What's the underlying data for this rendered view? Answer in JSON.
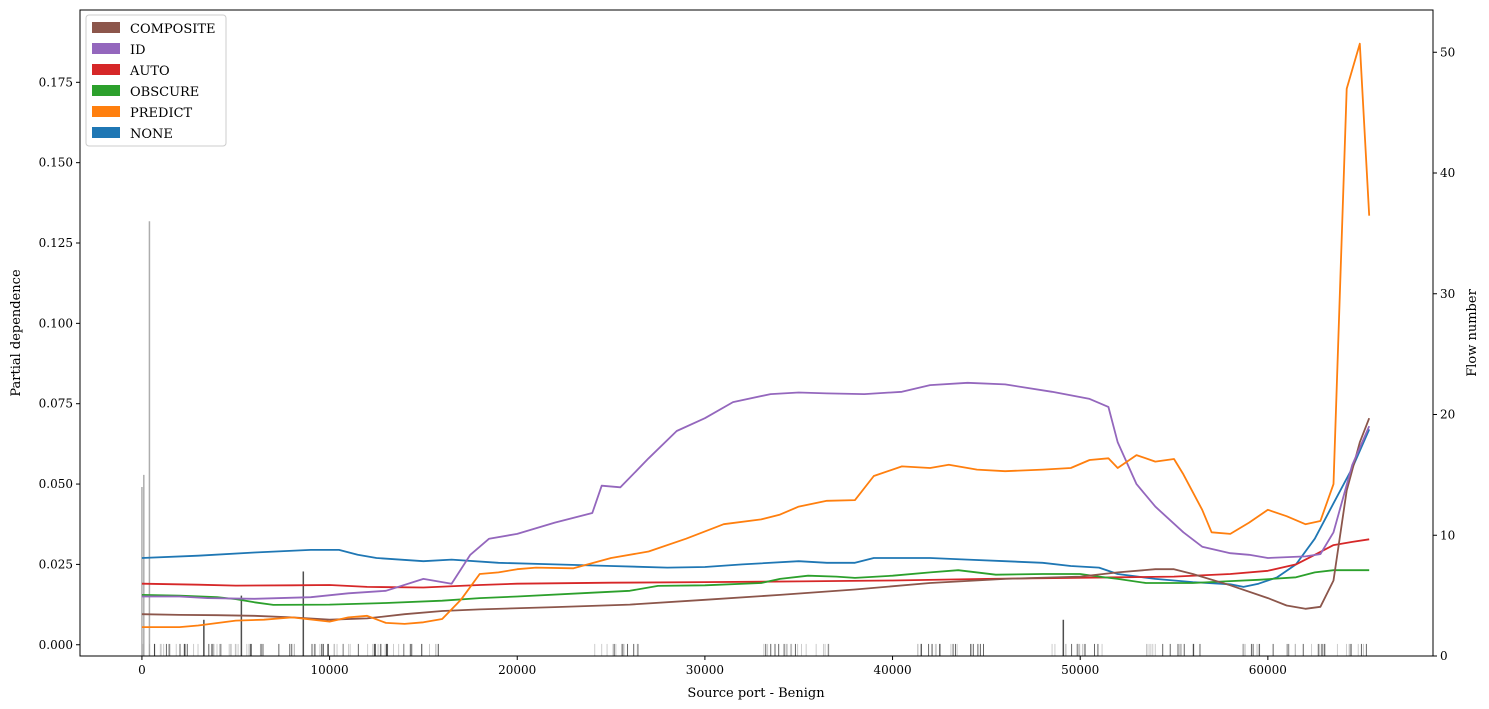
{
  "chart_data": {
    "type": "line",
    "xlabel": "Source port - Benign",
    "ylabel": "Partial dependence",
    "y2label": "Flow number",
    "xlim": [
      -3300,
      68800
    ],
    "ylim": [
      -0.0035,
      0.1975
    ],
    "y2lim": [
      0,
      53.5
    ],
    "xticks": [
      0,
      10000,
      20000,
      30000,
      40000,
      50000,
      60000
    ],
    "yticks": [
      0.0,
      0.025,
      0.05,
      0.075,
      0.1,
      0.125,
      0.15,
      0.175
    ],
    "y2ticks": [
      0,
      10,
      20,
      30,
      40,
      50
    ],
    "xtick_labels": [
      "0",
      "10000",
      "20000",
      "30000",
      "40000",
      "50000",
      "60000"
    ],
    "ytick_labels": [
      "0.000",
      "0.025",
      "0.050",
      "0.075",
      "0.100",
      "0.125",
      "0.150",
      "0.175"
    ],
    "y2tick_labels": [
      "0",
      "10",
      "20",
      "30",
      "40",
      "50"
    ],
    "legend_position": "top-left",
    "grid": false,
    "legend": [
      {
        "name": "COMPOSITE",
        "color": "#8c564b"
      },
      {
        "name": "ID",
        "color": "#9467bd"
      },
      {
        "name": "AUTO",
        "color": "#d62728"
      },
      {
        "name": "OBSCURE",
        "color": "#2ca02c"
      },
      {
        "name": "PREDICT",
        "color": "#ff7f0e"
      },
      {
        "name": "NONE",
        "color": "#1f77b4"
      }
    ],
    "series": [
      {
        "name": "NONE",
        "color": "#1f77b4",
        "points": [
          [
            0,
            0.027
          ],
          [
            3000,
            0.0277
          ],
          [
            6000,
            0.0287
          ],
          [
            9000,
            0.0295
          ],
          [
            10500,
            0.0295
          ],
          [
            11500,
            0.028
          ],
          [
            12500,
            0.027
          ],
          [
            15000,
            0.026
          ],
          [
            16500,
            0.0265
          ],
          [
            19000,
            0.0255
          ],
          [
            22000,
            0.025
          ],
          [
            25000,
            0.0245
          ],
          [
            28000,
            0.024
          ],
          [
            30000,
            0.0242
          ],
          [
            32000,
            0.025
          ],
          [
            35000,
            0.026
          ],
          [
            36500,
            0.0255
          ],
          [
            38000,
            0.0255
          ],
          [
            39000,
            0.027
          ],
          [
            42000,
            0.027
          ],
          [
            44000,
            0.0265
          ],
          [
            46000,
            0.026
          ],
          [
            48000,
            0.0255
          ],
          [
            49500,
            0.0245
          ],
          [
            51000,
            0.024
          ],
          [
            52000,
            0.022
          ],
          [
            54000,
            0.0205
          ],
          [
            56000,
            0.0195
          ],
          [
            58000,
            0.0188
          ],
          [
            58700,
            0.018
          ],
          [
            59500,
            0.019
          ],
          [
            60500,
            0.021
          ],
          [
            61500,
            0.025
          ],
          [
            62500,
            0.033
          ],
          [
            63500,
            0.044
          ],
          [
            64500,
            0.055
          ],
          [
            65400,
            0.067
          ]
        ]
      },
      {
        "name": "AUTO",
        "color": "#d62728",
        "points": [
          [
            0,
            0.019
          ],
          [
            3000,
            0.0187
          ],
          [
            5000,
            0.0184
          ],
          [
            8000,
            0.0185
          ],
          [
            10000,
            0.0186
          ],
          [
            12000,
            0.018
          ],
          [
            15000,
            0.0178
          ],
          [
            18000,
            0.0186
          ],
          [
            20000,
            0.019
          ],
          [
            25000,
            0.0193
          ],
          [
            30000,
            0.0195
          ],
          [
            35000,
            0.0197
          ],
          [
            40000,
            0.02
          ],
          [
            45000,
            0.0205
          ],
          [
            48000,
            0.0207
          ],
          [
            52000,
            0.021
          ],
          [
            55000,
            0.0212
          ],
          [
            58000,
            0.022
          ],
          [
            60000,
            0.023
          ],
          [
            61500,
            0.025
          ],
          [
            62500,
            0.028
          ],
          [
            63500,
            0.031
          ],
          [
            64500,
            0.032
          ],
          [
            65400,
            0.0328
          ]
        ]
      },
      {
        "name": "OBSCURE",
        "color": "#2ca02c",
        "points": [
          [
            0,
            0.0155
          ],
          [
            2000,
            0.0153
          ],
          [
            4000,
            0.0148
          ],
          [
            5000,
            0.0142
          ],
          [
            6000,
            0.0132
          ],
          [
            7000,
            0.0124
          ],
          [
            10000,
            0.0125
          ],
          [
            13000,
            0.013
          ],
          [
            16000,
            0.0137
          ],
          [
            18000,
            0.0145
          ],
          [
            20000,
            0.015
          ],
          [
            24000,
            0.0162
          ],
          [
            26000,
            0.0168
          ],
          [
            27500,
            0.0183
          ],
          [
            30000,
            0.0185
          ],
          [
            33000,
            0.0192
          ],
          [
            34000,
            0.0205
          ],
          [
            35500,
            0.0215
          ],
          [
            37000,
            0.0212
          ],
          [
            38000,
            0.0208
          ],
          [
            40000,
            0.0215
          ],
          [
            42000,
            0.0225
          ],
          [
            43500,
            0.0232
          ],
          [
            45500,
            0.0218
          ],
          [
            48000,
            0.022
          ],
          [
            50000,
            0.022
          ],
          [
            51000,
            0.0212
          ],
          [
            52000,
            0.0205
          ],
          [
            53500,
            0.0192
          ],
          [
            56000,
            0.0192
          ],
          [
            58000,
            0.0198
          ],
          [
            59500,
            0.0202
          ],
          [
            61500,
            0.021
          ],
          [
            62500,
            0.0225
          ],
          [
            63500,
            0.0232
          ],
          [
            64500,
            0.0232
          ],
          [
            65400,
            0.0232
          ]
        ]
      },
      {
        "name": "COMPOSITE",
        "color": "#8c564b",
        "points": [
          [
            0,
            0.0095
          ],
          [
            2000,
            0.0093
          ],
          [
            4000,
            0.0092
          ],
          [
            6000,
            0.009
          ],
          [
            8000,
            0.0085
          ],
          [
            10000,
            0.0078
          ],
          [
            12000,
            0.0082
          ],
          [
            14000,
            0.0095
          ],
          [
            16000,
            0.0105
          ],
          [
            18000,
            0.011
          ],
          [
            22000,
            0.0117
          ],
          [
            26000,
            0.0125
          ],
          [
            30000,
            0.014
          ],
          [
            34000,
            0.0155
          ],
          [
            38000,
            0.0172
          ],
          [
            42000,
            0.0192
          ],
          [
            46000,
            0.0205
          ],
          [
            50000,
            0.0212
          ],
          [
            52000,
            0.0225
          ],
          [
            54000,
            0.0235
          ],
          [
            55000,
            0.0235
          ],
          [
            56000,
            0.022
          ],
          [
            58000,
            0.0185
          ],
          [
            60000,
            0.0145
          ],
          [
            61000,
            0.0122
          ],
          [
            62000,
            0.0112
          ],
          [
            62800,
            0.0118
          ],
          [
            63500,
            0.02
          ],
          [
            64200,
            0.048
          ],
          [
            64900,
            0.063
          ],
          [
            65400,
            0.0705
          ]
        ]
      },
      {
        "name": "ID",
        "color": "#9467bd",
        "points": [
          [
            0,
            0.015
          ],
          [
            2000,
            0.015
          ],
          [
            3500,
            0.0145
          ],
          [
            6000,
            0.0143
          ],
          [
            9000,
            0.0148
          ],
          [
            11000,
            0.016
          ],
          [
            13000,
            0.0168
          ],
          [
            15000,
            0.0205
          ],
          [
            16500,
            0.019
          ],
          [
            17500,
            0.028
          ],
          [
            18500,
            0.033
          ],
          [
            20000,
            0.0345
          ],
          [
            22000,
            0.038
          ],
          [
            24000,
            0.041
          ],
          [
            24500,
            0.0495
          ],
          [
            25500,
            0.049
          ],
          [
            27000,
            0.058
          ],
          [
            28500,
            0.0665
          ],
          [
            30000,
            0.0705
          ],
          [
            31500,
            0.0755
          ],
          [
            33500,
            0.078
          ],
          [
            35000,
            0.0785
          ],
          [
            36500,
            0.0782
          ],
          [
            38500,
            0.078
          ],
          [
            40500,
            0.0787
          ],
          [
            42000,
            0.0808
          ],
          [
            44000,
            0.0815
          ],
          [
            46000,
            0.081
          ],
          [
            48500,
            0.0787
          ],
          [
            50500,
            0.0765
          ],
          [
            51500,
            0.074
          ],
          [
            52000,
            0.063
          ],
          [
            53000,
            0.05
          ],
          [
            54000,
            0.043
          ],
          [
            55500,
            0.035
          ],
          [
            56500,
            0.0305
          ],
          [
            58000,
            0.0285
          ],
          [
            59000,
            0.028
          ],
          [
            60000,
            0.027
          ],
          [
            62000,
            0.0275
          ],
          [
            62800,
            0.0282
          ],
          [
            63500,
            0.035
          ],
          [
            64500,
            0.056
          ],
          [
            65400,
            0.068
          ]
        ]
      },
      {
        "name": "PREDICT",
        "color": "#ff7f0e",
        "points": [
          [
            0,
            0.0055
          ],
          [
            2000,
            0.0055
          ],
          [
            3000,
            0.006
          ],
          [
            5000,
            0.0075
          ],
          [
            6500,
            0.0078
          ],
          [
            8000,
            0.0085
          ],
          [
            10000,
            0.0072
          ],
          [
            11000,
            0.0085
          ],
          [
            12000,
            0.009
          ],
          [
            13000,
            0.0068
          ],
          [
            14000,
            0.0065
          ],
          [
            15000,
            0.007
          ],
          [
            16000,
            0.008
          ],
          [
            17000,
            0.014
          ],
          [
            18000,
            0.022
          ],
          [
            19000,
            0.0225
          ],
          [
            20000,
            0.0235
          ],
          [
            21000,
            0.024
          ],
          [
            23000,
            0.0238
          ],
          [
            25000,
            0.027
          ],
          [
            27000,
            0.029
          ],
          [
            29000,
            0.033
          ],
          [
            31000,
            0.0375
          ],
          [
            33000,
            0.039
          ],
          [
            34000,
            0.0405
          ],
          [
            35000,
            0.043
          ],
          [
            36500,
            0.0448
          ],
          [
            38000,
            0.045
          ],
          [
            39000,
            0.0525
          ],
          [
            40500,
            0.0555
          ],
          [
            42000,
            0.055
          ],
          [
            43000,
            0.056
          ],
          [
            44500,
            0.0545
          ],
          [
            46000,
            0.054
          ],
          [
            48000,
            0.0545
          ],
          [
            49500,
            0.055
          ],
          [
            50500,
            0.0575
          ],
          [
            51500,
            0.058
          ],
          [
            52000,
            0.055
          ],
          [
            53000,
            0.059
          ],
          [
            54000,
            0.057
          ],
          [
            55000,
            0.0578
          ],
          [
            55500,
            0.053
          ],
          [
            56500,
            0.042
          ],
          [
            57000,
            0.035
          ],
          [
            58000,
            0.0345
          ],
          [
            59000,
            0.038
          ],
          [
            60000,
            0.042
          ],
          [
            61000,
            0.04
          ],
          [
            62000,
            0.0375
          ],
          [
            62800,
            0.0385
          ],
          [
            63500,
            0.05
          ],
          [
            64200,
            0.173
          ],
          [
            64900,
            0.187
          ],
          [
            65400,
            0.1335
          ]
        ]
      }
    ],
    "flow_number_spikes": [
      [
        0,
        14
      ],
      [
        100,
        15
      ],
      [
        400,
        36
      ],
      [
        3300,
        3
      ],
      [
        5300,
        5
      ],
      [
        8600,
        7
      ],
      [
        49100,
        3
      ]
    ],
    "flow_number_rug_ranges": [
      [
        0,
        8500
      ],
      [
        9000,
        16500
      ],
      [
        24000,
        26500
      ],
      [
        33000,
        37000
      ],
      [
        41000,
        45000
      ],
      [
        48500,
        51500
      ],
      [
        53500,
        56500
      ],
      [
        58500,
        60500
      ],
      [
        61000,
        65400
      ]
    ]
  }
}
